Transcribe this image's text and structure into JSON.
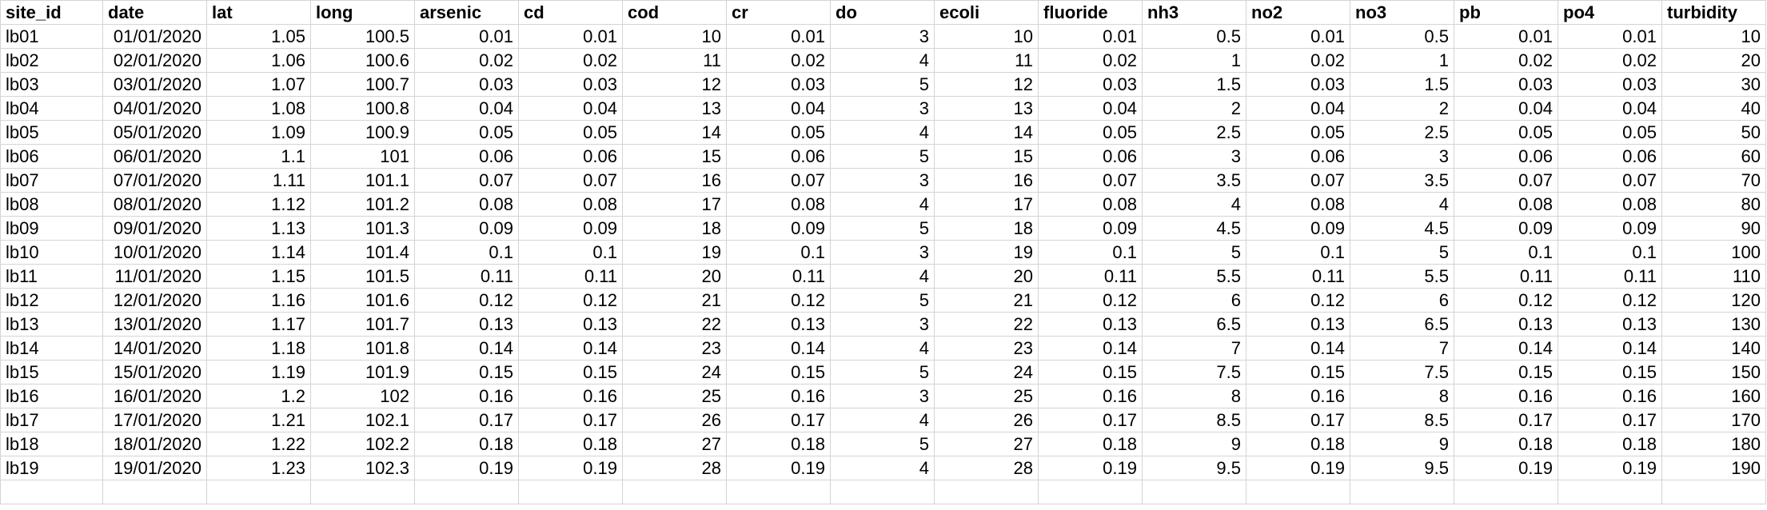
{
  "columns": [
    "site_id",
    "date",
    "lat",
    "long",
    "arsenic",
    "cd",
    "cod",
    "cr",
    "do",
    "ecoli",
    "fluoride",
    "nh3",
    "no2",
    "no3",
    "pb",
    "po4",
    "turbidity"
  ],
  "rows": [
    [
      "lb01",
      "01/01/2020",
      "1.05",
      "100.5",
      "0.01",
      "0.01",
      "10",
      "0.01",
      "3",
      "10",
      "0.01",
      "0.5",
      "0.01",
      "0.5",
      "0.01",
      "0.01",
      "10"
    ],
    [
      "lb02",
      "02/01/2020",
      "1.06",
      "100.6",
      "0.02",
      "0.02",
      "11",
      "0.02",
      "4",
      "11",
      "0.02",
      "1",
      "0.02",
      "1",
      "0.02",
      "0.02",
      "20"
    ],
    [
      "lb03",
      "03/01/2020",
      "1.07",
      "100.7",
      "0.03",
      "0.03",
      "12",
      "0.03",
      "5",
      "12",
      "0.03",
      "1.5",
      "0.03",
      "1.5",
      "0.03",
      "0.03",
      "30"
    ],
    [
      "lb04",
      "04/01/2020",
      "1.08",
      "100.8",
      "0.04",
      "0.04",
      "13",
      "0.04",
      "3",
      "13",
      "0.04",
      "2",
      "0.04",
      "2",
      "0.04",
      "0.04",
      "40"
    ],
    [
      "lb05",
      "05/01/2020",
      "1.09",
      "100.9",
      "0.05",
      "0.05",
      "14",
      "0.05",
      "4",
      "14",
      "0.05",
      "2.5",
      "0.05",
      "2.5",
      "0.05",
      "0.05",
      "50"
    ],
    [
      "lb06",
      "06/01/2020",
      "1.1",
      "101",
      "0.06",
      "0.06",
      "15",
      "0.06",
      "5",
      "15",
      "0.06",
      "3",
      "0.06",
      "3",
      "0.06",
      "0.06",
      "60"
    ],
    [
      "lb07",
      "07/01/2020",
      "1.11",
      "101.1",
      "0.07",
      "0.07",
      "16",
      "0.07",
      "3",
      "16",
      "0.07",
      "3.5",
      "0.07",
      "3.5",
      "0.07",
      "0.07",
      "70"
    ],
    [
      "lb08",
      "08/01/2020",
      "1.12",
      "101.2",
      "0.08",
      "0.08",
      "17",
      "0.08",
      "4",
      "17",
      "0.08",
      "4",
      "0.08",
      "4",
      "0.08",
      "0.08",
      "80"
    ],
    [
      "lb09",
      "09/01/2020",
      "1.13",
      "101.3",
      "0.09",
      "0.09",
      "18",
      "0.09",
      "5",
      "18",
      "0.09",
      "4.5",
      "0.09",
      "4.5",
      "0.09",
      "0.09",
      "90"
    ],
    [
      "lb10",
      "10/01/2020",
      "1.14",
      "101.4",
      "0.1",
      "0.1",
      "19",
      "0.1",
      "3",
      "19",
      "0.1",
      "5",
      "0.1",
      "5",
      "0.1",
      "0.1",
      "100"
    ],
    [
      "lb11",
      "11/01/2020",
      "1.15",
      "101.5",
      "0.11",
      "0.11",
      "20",
      "0.11",
      "4",
      "20",
      "0.11",
      "5.5",
      "0.11",
      "5.5",
      "0.11",
      "0.11",
      "110"
    ],
    [
      "lb12",
      "12/01/2020",
      "1.16",
      "101.6",
      "0.12",
      "0.12",
      "21",
      "0.12",
      "5",
      "21",
      "0.12",
      "6",
      "0.12",
      "6",
      "0.12",
      "0.12",
      "120"
    ],
    [
      "lb13",
      "13/01/2020",
      "1.17",
      "101.7",
      "0.13",
      "0.13",
      "22",
      "0.13",
      "3",
      "22",
      "0.13",
      "6.5",
      "0.13",
      "6.5",
      "0.13",
      "0.13",
      "130"
    ],
    [
      "lb14",
      "14/01/2020",
      "1.18",
      "101.8",
      "0.14",
      "0.14",
      "23",
      "0.14",
      "4",
      "23",
      "0.14",
      "7",
      "0.14",
      "7",
      "0.14",
      "0.14",
      "140"
    ],
    [
      "lb15",
      "15/01/2020",
      "1.19",
      "101.9",
      "0.15",
      "0.15",
      "24",
      "0.15",
      "5",
      "24",
      "0.15",
      "7.5",
      "0.15",
      "7.5",
      "0.15",
      "0.15",
      "150"
    ],
    [
      "lb16",
      "16/01/2020",
      "1.2",
      "102",
      "0.16",
      "0.16",
      "25",
      "0.16",
      "3",
      "25",
      "0.16",
      "8",
      "0.16",
      "8",
      "0.16",
      "0.16",
      "160"
    ],
    [
      "lb17",
      "17/01/2020",
      "1.21",
      "102.1",
      "0.17",
      "0.17",
      "26",
      "0.17",
      "4",
      "26",
      "0.17",
      "8.5",
      "0.17",
      "8.5",
      "0.17",
      "0.17",
      "170"
    ],
    [
      "lb18",
      "18/01/2020",
      "1.22",
      "102.2",
      "0.18",
      "0.18",
      "27",
      "0.18",
      "5",
      "27",
      "0.18",
      "9",
      "0.18",
      "9",
      "0.18",
      "0.18",
      "180"
    ],
    [
      "lb19",
      "19/01/2020",
      "1.23",
      "102.3",
      "0.19",
      "0.19",
      "28",
      "0.19",
      "4",
      "28",
      "0.19",
      "9.5",
      "0.19",
      "9.5",
      "0.19",
      "0.19",
      "190"
    ]
  ]
}
